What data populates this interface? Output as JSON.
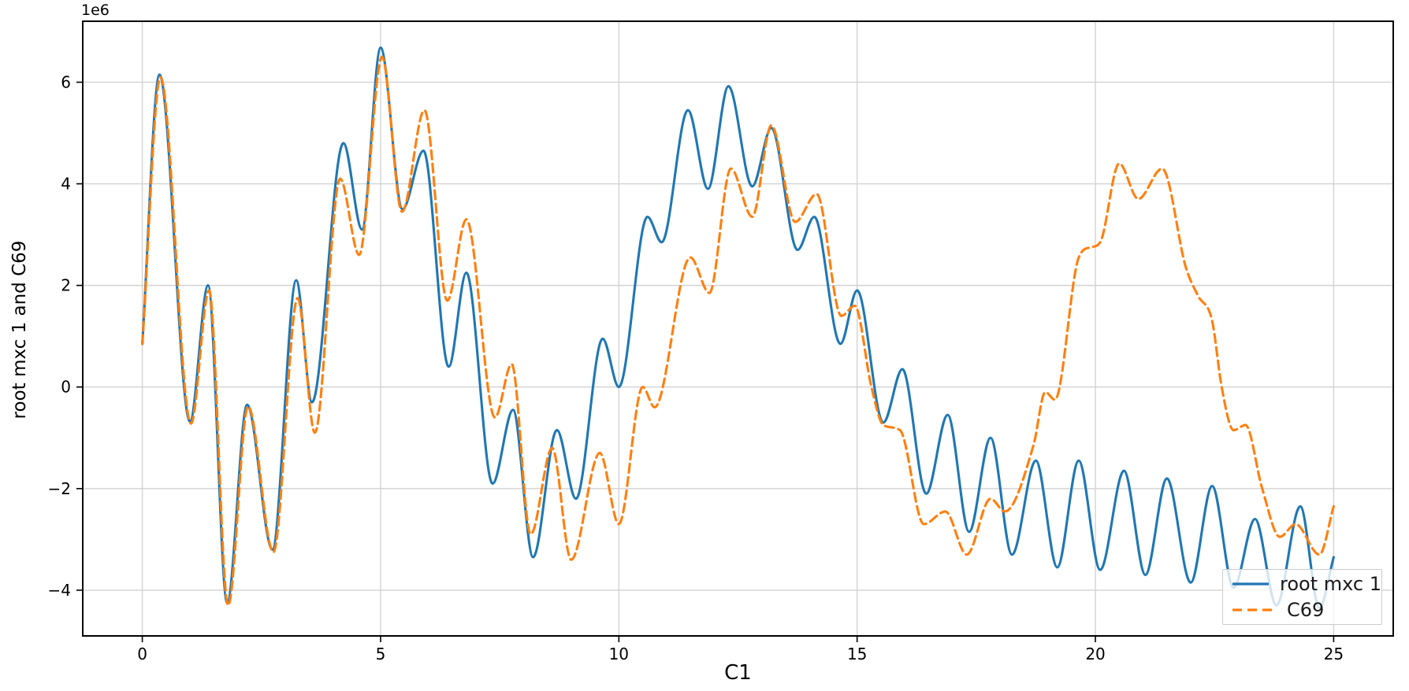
{
  "chart_data": {
    "type": "line",
    "title": "",
    "xlabel": "C1",
    "ylabel": "root mxc 1 and C69",
    "y_offset_label": "1e6",
    "grid": true,
    "legend_position": "lower right",
    "xlim": [
      -1.25,
      26.25
    ],
    "ylim": [
      -4.9,
      7.2
    ],
    "y_scale_factor": 1000000,
    "x_ticks": {
      "values": [
        0,
        5,
        10,
        15,
        20,
        25
      ],
      "labels": [
        "0",
        "5",
        "10",
        "15",
        "20",
        "25"
      ]
    },
    "y_ticks": {
      "values": [
        -4,
        -2,
        0,
        2,
        4,
        6
      ],
      "labels": [
        "−4",
        "−2",
        "0",
        "2",
        "4",
        "6"
      ]
    },
    "colors": {
      "spine": "#000000",
      "grid": "#d2d2d2",
      "tick_text": "#000000"
    },
    "series": [
      {
        "name": "root mxc 1",
        "color": "#1f77b4",
        "style": "solid",
        "points": [
          [
            0,
            0.85
          ],
          [
            0.36,
            6.15
          ],
          [
            1.0,
            -0.68
          ],
          [
            1.38,
            2.0
          ],
          [
            1.78,
            -4.25
          ],
          [
            2.2,
            -0.35
          ],
          [
            2.73,
            -3.2
          ],
          [
            3.23,
            2.1
          ],
          [
            3.56,
            -0.3
          ],
          [
            4.22,
            4.8
          ],
          [
            4.61,
            3.1
          ],
          [
            5.0,
            6.68
          ],
          [
            5.46,
            3.5
          ],
          [
            5.9,
            4.65
          ],
          [
            6.43,
            0.4
          ],
          [
            6.8,
            2.25
          ],
          [
            7.35,
            -1.9
          ],
          [
            7.78,
            -0.45
          ],
          [
            8.2,
            -3.35
          ],
          [
            8.7,
            -0.85
          ],
          [
            9.1,
            -2.2
          ],
          [
            9.66,
            0.95
          ],
          [
            10.0,
            0.0
          ],
          [
            10.6,
            3.35
          ],
          [
            10.9,
            2.85
          ],
          [
            11.45,
            5.45
          ],
          [
            11.87,
            3.9
          ],
          [
            12.3,
            5.92
          ],
          [
            12.8,
            3.95
          ],
          [
            13.2,
            5.1
          ],
          [
            13.75,
            2.7
          ],
          [
            14.1,
            3.35
          ],
          [
            14.65,
            0.85
          ],
          [
            15.0,
            1.9
          ],
          [
            15.55,
            -0.7
          ],
          [
            15.95,
            0.35
          ],
          [
            16.45,
            -2.1
          ],
          [
            16.9,
            -0.55
          ],
          [
            17.35,
            -2.85
          ],
          [
            17.8,
            -1.0
          ],
          [
            18.25,
            -3.3
          ],
          [
            18.75,
            -1.45
          ],
          [
            19.2,
            -3.55
          ],
          [
            19.65,
            -1.45
          ],
          [
            20.1,
            -3.6
          ],
          [
            20.6,
            -1.65
          ],
          [
            21.05,
            -3.7
          ],
          [
            21.5,
            -1.8
          ],
          [
            22.0,
            -3.85
          ],
          [
            22.45,
            -1.95
          ],
          [
            22.9,
            -3.95
          ],
          [
            23.35,
            -2.6
          ],
          [
            23.8,
            -4.3
          ],
          [
            24.3,
            -2.35
          ],
          [
            24.7,
            -4.35
          ],
          [
            25.0,
            -3.35
          ]
        ]
      },
      {
        "name": "C69",
        "color": "#ff7f0e",
        "style": "dashed",
        "points": [
          [
            0,
            0.85
          ],
          [
            0.38,
            6.1
          ],
          [
            1.02,
            -0.72
          ],
          [
            1.4,
            1.9
          ],
          [
            1.8,
            -4.3
          ],
          [
            2.22,
            -0.38
          ],
          [
            2.75,
            -3.25
          ],
          [
            3.26,
            1.75
          ],
          [
            3.62,
            -0.9
          ],
          [
            4.15,
            4.1
          ],
          [
            4.55,
            2.6
          ],
          [
            5.03,
            6.5
          ],
          [
            5.45,
            3.45
          ],
          [
            5.92,
            5.45
          ],
          [
            6.4,
            1.7
          ],
          [
            6.8,
            3.3
          ],
          [
            7.4,
            -0.6
          ],
          [
            7.75,
            0.45
          ],
          [
            8.15,
            -2.9
          ],
          [
            8.6,
            -1.2
          ],
          [
            9.0,
            -3.4
          ],
          [
            9.6,
            -1.3
          ],
          [
            10.0,
            -2.7
          ],
          [
            10.5,
            0.0
          ],
          [
            10.75,
            -0.4
          ],
          [
            11.5,
            2.55
          ],
          [
            11.9,
            1.85
          ],
          [
            12.35,
            4.3
          ],
          [
            12.8,
            3.35
          ],
          [
            13.2,
            5.15
          ],
          [
            13.7,
            3.25
          ],
          [
            14.15,
            3.8
          ],
          [
            14.67,
            1.4
          ],
          [
            14.95,
            1.6
          ],
          [
            15.3,
            0.0
          ],
          [
            15.55,
            -0.75
          ],
          [
            15.9,
            -0.85
          ],
          [
            16.4,
            -2.7
          ],
          [
            16.85,
            -2.45
          ],
          [
            17.3,
            -3.3
          ],
          [
            17.8,
            -2.2
          ],
          [
            18.1,
            -2.45
          ],
          [
            18.7,
            -1.15
          ],
          [
            18.95,
            -0.1
          ],
          [
            19.15,
            -0.25
          ],
          [
            19.65,
            2.55
          ],
          [
            19.9,
            2.75
          ],
          [
            20.1,
            2.85
          ],
          [
            20.5,
            4.4
          ],
          [
            20.9,
            3.7
          ],
          [
            21.4,
            4.3
          ],
          [
            21.9,
            2.35
          ],
          [
            22.15,
            1.8
          ],
          [
            22.45,
            1.3
          ],
          [
            22.65,
            0.0
          ],
          [
            22.9,
            -0.85
          ],
          [
            23.15,
            -0.75
          ],
          [
            23.5,
            -2.0
          ],
          [
            23.87,
            -2.95
          ],
          [
            24.2,
            -2.7
          ],
          [
            24.7,
            -3.3
          ],
          [
            25.0,
            -2.35
          ]
        ]
      }
    ]
  }
}
